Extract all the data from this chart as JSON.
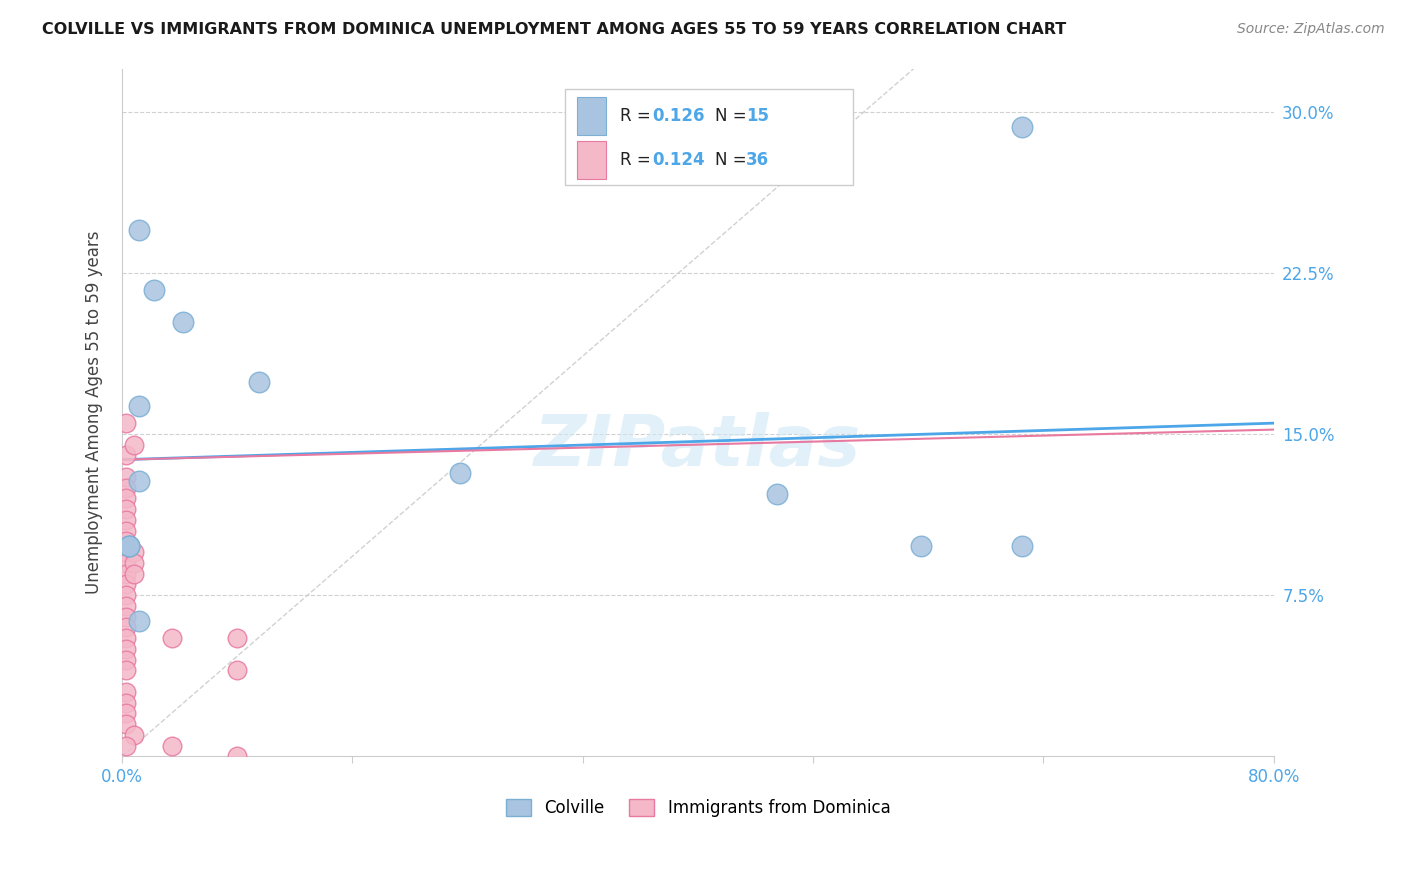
{
  "title": "COLVILLE VS IMMIGRANTS FROM DOMINICA UNEMPLOYMENT AMONG AGES 55 TO 59 YEARS CORRELATION CHART",
  "source": "Source: ZipAtlas.com",
  "ylabel": "Unemployment Among Ages 55 to 59 years",
  "xlim": [
    0.0,
    0.8
  ],
  "ylim": [
    0.0,
    0.32
  ],
  "yticks": [
    0.0,
    0.075,
    0.15,
    0.225,
    0.3
  ],
  "ytick_labels": [
    "",
    "7.5%",
    "15.0%",
    "22.5%",
    "30.0%"
  ],
  "xtick_positions": [
    0.0,
    0.16,
    0.32,
    0.48,
    0.64,
    0.8
  ],
  "colville_color": "#a8c4e0",
  "dominica_color": "#f4b8c8",
  "colville_edge": "#7bafd4",
  "dominica_edge": "#e879a0",
  "trend_colville_color": "#4da6e8",
  "trend_dominica_color": "#e879a0",
  "diagonal_color": "#cccccc",
  "tick_color": "#4da6e8",
  "legend_R_color": "#4da6e8",
  "colville_R": "0.126",
  "colville_N": "15",
  "dominica_R": "0.124",
  "dominica_N": "36",
  "colville_label": "Colville",
  "dominica_label": "Immigrants from Dominica",
  "colville_points_x": [
    0.012,
    0.022,
    0.042,
    0.012,
    0.095,
    0.235,
    0.012,
    0.012,
    0.455,
    0.555,
    0.625,
    0.625,
    0.005,
    0.005,
    0.005
  ],
  "colville_points_y": [
    0.245,
    0.217,
    0.202,
    0.163,
    0.174,
    0.132,
    0.128,
    0.063,
    0.122,
    0.098,
    0.098,
    0.293,
    0.098,
    0.098,
    0.098
  ],
  "dominica_points_x": [
    0.003,
    0.003,
    0.003,
    0.003,
    0.003,
    0.003,
    0.003,
    0.003,
    0.003,
    0.003,
    0.003,
    0.003,
    0.003,
    0.003,
    0.003,
    0.003,
    0.003,
    0.003,
    0.003,
    0.003,
    0.003,
    0.003,
    0.003,
    0.003,
    0.003,
    0.008,
    0.008,
    0.008,
    0.008,
    0.008,
    0.035,
    0.035,
    0.08,
    0.08,
    0.08,
    0.003
  ],
  "dominica_points_y": [
    0.155,
    0.14,
    0.13,
    0.125,
    0.12,
    0.115,
    0.11,
    0.105,
    0.1,
    0.095,
    0.09,
    0.085,
    0.08,
    0.075,
    0.07,
    0.065,
    0.06,
    0.055,
    0.05,
    0.045,
    0.04,
    0.03,
    0.025,
    0.02,
    0.015,
    0.145,
    0.095,
    0.09,
    0.085,
    0.01,
    0.055,
    0.005,
    0.055,
    0.04,
    0.0,
    0.005
  ],
  "colville_trend_x": [
    0.0,
    0.8
  ],
  "colville_trend_y": [
    0.138,
    0.155
  ],
  "dominica_trend_x": [
    0.0,
    0.8
  ],
  "dominica_trend_y": [
    0.138,
    0.152
  ],
  "watermark": "ZIPatlas",
  "background_color": "#ffffff",
  "grid_color": "#cccccc"
}
